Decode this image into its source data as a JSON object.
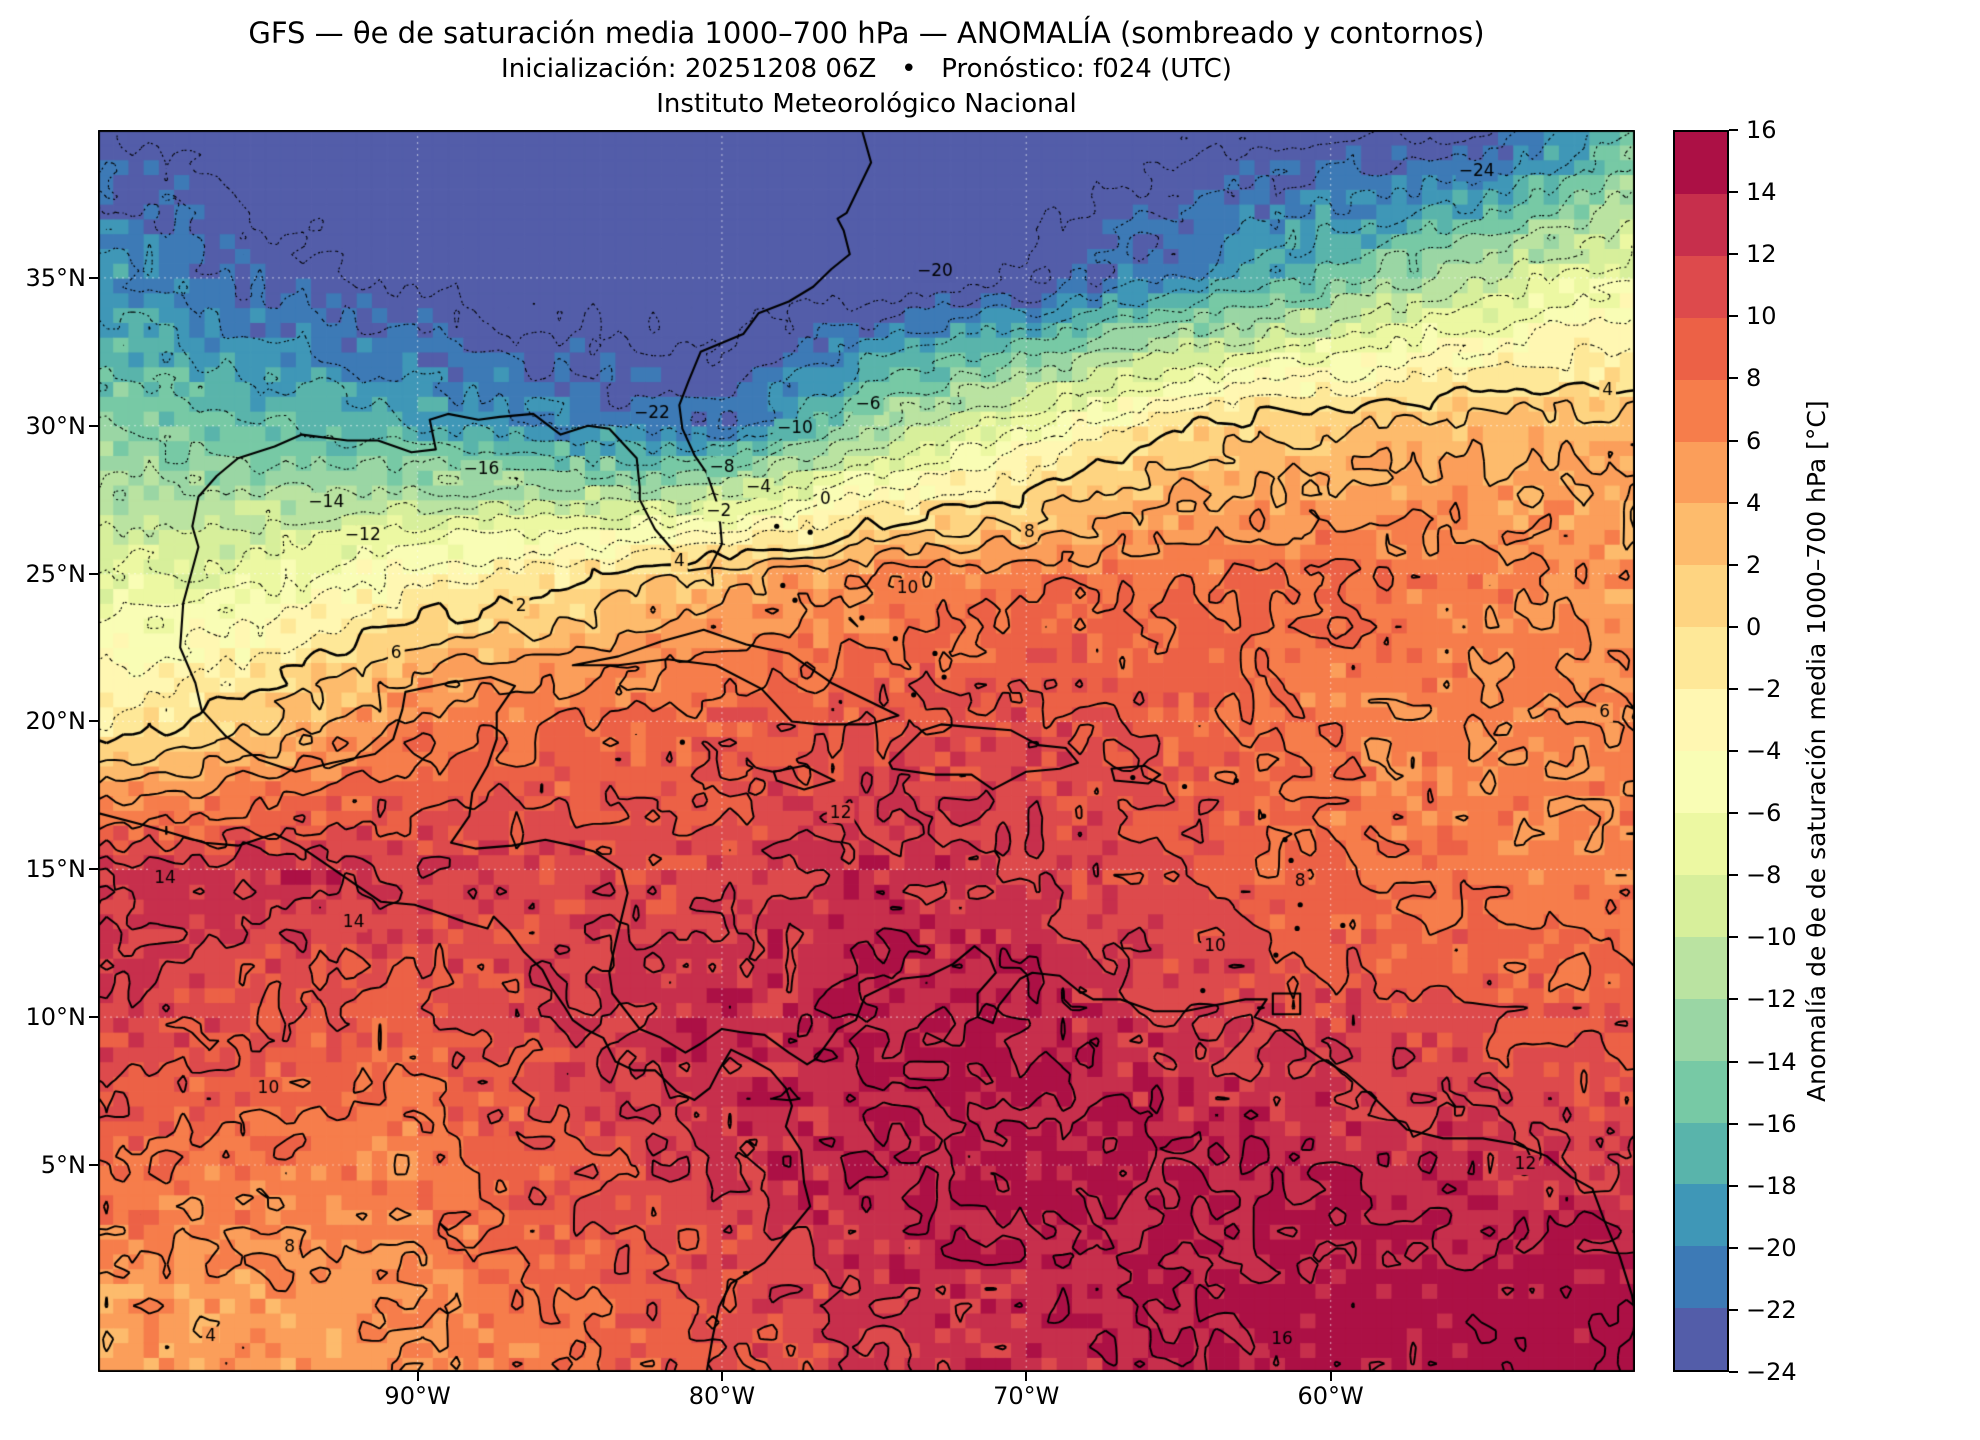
{
  "title": {
    "line1": "GFS — θe de saturación media 1000–700 hPa — ANOMALÍA (sombreado y contornos)",
    "line2": "Inicialización: 20251208 06Z   •   Pronóstico: f024 (UTC)",
    "line3": "Instituto Meteorológico Nacional"
  },
  "axes": {
    "lon_range": [
      -100.5,
      -50.0
    ],
    "lat_range": [
      -2.0,
      40.0
    ],
    "x_ticks": [
      {
        "label": "90°W",
        "lon": -90
      },
      {
        "label": "80°W",
        "lon": -80
      },
      {
        "label": "70°W",
        "lon": -70
      },
      {
        "label": "60°W",
        "lon": -60
      }
    ],
    "y_ticks": [
      {
        "label": "35°N",
        "lat": 35
      },
      {
        "label": "30°N",
        "lat": 30
      },
      {
        "label": "25°N",
        "lat": 25
      },
      {
        "label": "20°N",
        "lat": 20
      },
      {
        "label": "15°N",
        "lat": 15
      },
      {
        "label": "10°N",
        "lat": 10
      },
      {
        "label": "5°N",
        "lat": 5
      }
    ]
  },
  "colorbar": {
    "label": "Anomalía de θe de saturación media 1000–700 hPa [°C]",
    "min": -24,
    "max": 16,
    "step": 2,
    "tick_labels": [
      "16",
      "14",
      "12",
      "10",
      "8",
      "6",
      "4",
      "2",
      "0",
      "−2",
      "−4",
      "−6",
      "−8",
      "−10",
      "−12",
      "−14",
      "−16",
      "−18",
      "−20",
      "−22",
      "−24"
    ]
  },
  "chart_data": {
    "type": "heatmap",
    "field": "Anomalía de θe de saturación media 1000–700 hPa",
    "units": "°C",
    "model": "GFS",
    "init": "20251208 06Z",
    "forecast": "f024 (UTC)",
    "levels": {
      "min": -24,
      "max": 16,
      "step": 2
    },
    "colormap": {
      "name": "Spectral_r",
      "anchors": [
        "#9e0142",
        "#d53e4f",
        "#f46d43",
        "#fdae61",
        "#fee08b",
        "#ffffbf",
        "#e6f598",
        "#abdda4",
        "#66c2a5",
        "#3288bd",
        "#5e4fa2"
      ]
    },
    "grid": {
      "lons": [
        -100,
        -95,
        -90,
        -85,
        -80,
        -75,
        -70,
        -65,
        -60,
        -55,
        -50
      ],
      "lats": [
        40,
        35,
        30,
        25,
        20,
        15,
        10,
        5,
        0
      ],
      "values": [
        [
          -24,
          -26,
          -27,
          -27,
          -27,
          -27,
          -26,
          -25,
          -25,
          -25,
          -16
        ],
        [
          -19,
          -23,
          -25,
          -26,
          -26,
          -26,
          -24,
          -20,
          -15,
          -10,
          -6
        ],
        [
          -14,
          -16,
          -18,
          -20,
          -22,
          -12,
          -6,
          0,
          2,
          3,
          3
        ],
        [
          -8,
          -7,
          -3,
          -1,
          3,
          6,
          7,
          8,
          8,
          7,
          5
        ],
        [
          -2,
          2,
          7,
          8,
          9,
          10,
          11,
          9,
          7,
          6,
          6
        ],
        [
          12,
          13,
          12,
          11,
          11,
          13,
          12,
          10,
          8,
          7,
          7
        ],
        [
          12,
          10,
          9,
          12,
          13,
          14,
          14,
          12,
          11,
          10,
          9
        ],
        [
          8,
          7,
          7,
          10,
          12,
          14,
          15,
          14,
          14,
          13,
          12
        ],
        [
          5,
          5,
          6,
          8,
          10,
          12,
          13,
          14,
          15,
          15,
          16
        ]
      ]
    },
    "contour_labels": [
      {
        "text": "−24",
        "lon": -55.2,
        "lat": 38.6
      },
      {
        "text": "−20",
        "lon": -73.0,
        "lat": 35.2
      },
      {
        "text": "−22",
        "lon": -82.3,
        "lat": 30.4
      },
      {
        "text": "−16",
        "lon": -87.9,
        "lat": 28.5
      },
      {
        "text": "−14",
        "lon": -93.0,
        "lat": 27.4
      },
      {
        "text": "−12",
        "lon": -91.8,
        "lat": 26.3
      },
      {
        "text": "−10",
        "lon": -77.6,
        "lat": 29.9
      },
      {
        "text": "−8",
        "lon": -80.0,
        "lat": 28.6
      },
      {
        "text": "−6",
        "lon": -75.2,
        "lat": 30.7
      },
      {
        "text": "−4",
        "lon": -78.8,
        "lat": 27.9
      },
      {
        "text": "−2",
        "lon": -80.1,
        "lat": 27.1
      },
      {
        "text": "0",
        "lon": -76.6,
        "lat": 27.5
      },
      {
        "text": "2",
        "lon": -86.6,
        "lat": 23.9
      },
      {
        "text": "4",
        "lon": -81.4,
        "lat": 25.4
      },
      {
        "text": "4",
        "lon": -50.9,
        "lat": 31.2
      },
      {
        "text": "4",
        "lon": -96.8,
        "lat": -0.8
      },
      {
        "text": "6",
        "lon": -90.7,
        "lat": 22.3
      },
      {
        "text": "6",
        "lon": -51.0,
        "lat": 20.3
      },
      {
        "text": "8",
        "lon": -69.9,
        "lat": 26.4
      },
      {
        "text": "8",
        "lon": -61.0,
        "lat": 14.6
      },
      {
        "text": "8",
        "lon": -94.2,
        "lat": 2.2
      },
      {
        "text": "10",
        "lon": -73.9,
        "lat": 24.5
      },
      {
        "text": "10",
        "lon": -94.9,
        "lat": 7.6
      },
      {
        "text": "10",
        "lon": -63.8,
        "lat": 12.4
      },
      {
        "text": "12",
        "lon": -76.1,
        "lat": 16.9
      },
      {
        "text": "12",
        "lon": -53.6,
        "lat": 5.0
      },
      {
        "text": "14",
        "lon": -92.1,
        "lat": 13.2
      },
      {
        "text": "14",
        "lon": -98.3,
        "lat": 14.7
      },
      {
        "text": "16",
        "lon": -61.6,
        "lat": -0.9
      }
    ],
    "coastlines": [
      [
        [
          -75.4,
          40.0
        ],
        [
          -75.1,
          38.9
        ],
        [
          -75.9,
          37.2
        ],
        [
          -76.2,
          37.0
        ],
        [
          -76.0,
          36.6
        ],
        [
          -75.8,
          35.8
        ],
        [
          -76.4,
          35.3
        ],
        [
          -77.0,
          34.7
        ],
        [
          -77.8,
          34.2
        ],
        [
          -78.8,
          33.8
        ],
        [
          -79.3,
          33.1
        ],
        [
          -80.7,
          32.5
        ],
        [
          -81.1,
          31.5
        ],
        [
          -81.4,
          30.7
        ],
        [
          -81.3,
          29.9
        ],
        [
          -80.9,
          29.0
        ],
        [
          -80.5,
          28.4
        ],
        [
          -80.1,
          27.2
        ],
        [
          -80.0,
          26.0
        ],
        [
          -80.4,
          25.2
        ],
        [
          -81.1,
          25.1
        ],
        [
          -81.7,
          25.9
        ],
        [
          -82.2,
          26.5
        ],
        [
          -82.7,
          27.5
        ],
        [
          -82.7,
          27.9
        ],
        [
          -82.8,
          28.9
        ],
        [
          -83.7,
          29.9
        ],
        [
          -84.4,
          30.0
        ],
        [
          -85.3,
          29.7
        ],
        [
          -86.2,
          30.4
        ],
        [
          -87.3,
          30.3
        ],
        [
          -88.0,
          30.2
        ],
        [
          -89.0,
          30.4
        ],
        [
          -89.6,
          30.2
        ],
        [
          -89.4,
          29.2
        ],
        [
          -90.2,
          29.1
        ],
        [
          -91.3,
          29.5
        ],
        [
          -92.3,
          29.5
        ],
        [
          -93.8,
          29.7
        ],
        [
          -94.7,
          29.3
        ],
        [
          -95.9,
          28.9
        ],
        [
          -96.6,
          28.3
        ],
        [
          -97.2,
          27.6
        ],
        [
          -97.4,
          26.6
        ],
        [
          -97.2,
          25.9
        ],
        [
          -97.7,
          24.0
        ],
        [
          -97.8,
          22.5
        ],
        [
          -97.3,
          21.3
        ],
        [
          -97.1,
          20.4
        ],
        [
          -96.3,
          19.5
        ],
        [
          -95.2,
          18.7
        ],
        [
          -94.0,
          18.3
        ],
        [
          -92.8,
          18.6
        ],
        [
          -91.4,
          18.9
        ],
        [
          -90.8,
          19.4
        ],
        [
          -90.5,
          20.4
        ],
        [
          -90.4,
          21.0
        ],
        [
          -89.0,
          21.3
        ],
        [
          -87.6,
          21.5
        ],
        [
          -86.8,
          21.2
        ],
        [
          -87.4,
          20.3
        ],
        [
          -87.4,
          19.4
        ],
        [
          -87.7,
          18.5
        ],
        [
          -88.2,
          17.6
        ],
        [
          -88.3,
          16.8
        ],
        [
          -88.9,
          15.9
        ],
        [
          -88.1,
          15.7
        ],
        [
          -86.9,
          15.8
        ],
        [
          -85.8,
          16.0
        ],
        [
          -84.9,
          15.8
        ],
        [
          -84.2,
          15.6
        ],
        [
          -83.3,
          15.0
        ],
        [
          -83.1,
          14.2
        ],
        [
          -83.5,
          12.5
        ],
        [
          -83.7,
          11.5
        ],
        [
          -83.6,
          10.8
        ],
        [
          -82.7,
          9.6
        ],
        [
          -82.0,
          9.3
        ],
        [
          -81.2,
          8.8
        ],
        [
          -80.7,
          9.1
        ],
        [
          -80.0,
          9.6
        ],
        [
          -79.4,
          9.5
        ],
        [
          -78.6,
          9.4
        ],
        [
          -77.8,
          8.8
        ],
        [
          -77.2,
          8.4
        ],
        [
          -76.9,
          8.6
        ],
        [
          -76.2,
          9.6
        ],
        [
          -75.6,
          9.9
        ],
        [
          -75.3,
          10.7
        ],
        [
          -74.7,
          11.0
        ],
        [
          -74.1,
          11.3
        ],
        [
          -73.2,
          11.4
        ],
        [
          -72.4,
          11.8
        ],
        [
          -71.7,
          12.4
        ],
        [
          -71.2,
          12.0
        ],
        [
          -71.0,
          11.5
        ],
        [
          -71.6,
          10.8
        ],
        [
          -71.6,
          10.0
        ],
        [
          -71.1,
          9.8
        ],
        [
          -70.9,
          10.4
        ],
        [
          -70.2,
          11.3
        ],
        [
          -69.8,
          11.5
        ],
        [
          -68.9,
          11.4
        ],
        [
          -68.3,
          10.9
        ],
        [
          -67.8,
          10.6
        ],
        [
          -66.9,
          10.6
        ],
        [
          -65.8,
          10.2
        ],
        [
          -64.8,
          10.2
        ],
        [
          -63.8,
          10.4
        ],
        [
          -62.8,
          10.6
        ],
        [
          -62.1,
          10.6
        ],
        [
          -62.5,
          10.0
        ],
        [
          -61.8,
          9.7
        ],
        [
          -61.0,
          9.1
        ],
        [
          -60.3,
          8.6
        ],
        [
          -59.5,
          8.1
        ],
        [
          -58.6,
          7.3
        ],
        [
          -57.5,
          6.2
        ],
        [
          -56.3,
          5.9
        ],
        [
          -55.0,
          5.9
        ],
        [
          -53.9,
          5.7
        ],
        [
          -52.9,
          5.3
        ],
        [
          -52.1,
          4.6
        ],
        [
          -51.4,
          4.2
        ],
        [
          -51.0,
          3.1
        ],
        [
          -50.5,
          1.9
        ],
        [
          -50.1,
          0.6
        ],
        [
          -50.0,
          0.0
        ]
      ],
      [
        [
          -100.5,
          16.9
        ],
        [
          -99.0,
          16.5
        ],
        [
          -98.0,
          16.2
        ],
        [
          -97.0,
          15.9
        ],
        [
          -95.9,
          15.8
        ],
        [
          -94.7,
          16.2
        ],
        [
          -93.9,
          15.8
        ],
        [
          -92.9,
          15.1
        ],
        [
          -92.2,
          14.6
        ],
        [
          -91.2,
          13.9
        ],
        [
          -90.1,
          13.8
        ],
        [
          -89.2,
          13.5
        ],
        [
          -88.4,
          13.2
        ],
        [
          -87.7,
          13.0
        ],
        [
          -87.5,
          13.4
        ],
        [
          -87.0,
          12.9
        ],
        [
          -86.5,
          12.2
        ],
        [
          -85.9,
          11.6
        ],
        [
          -85.6,
          11.0
        ],
        [
          -85.2,
          10.4
        ],
        [
          -84.9,
          9.9
        ],
        [
          -84.5,
          9.6
        ],
        [
          -83.9,
          9.3
        ],
        [
          -83.5,
          8.5
        ],
        [
          -82.9,
          8.2
        ],
        [
          -82.2,
          8.2
        ],
        [
          -81.5,
          7.5
        ],
        [
          -80.9,
          7.2
        ],
        [
          -80.4,
          7.6
        ],
        [
          -80.1,
          8.2
        ],
        [
          -79.7,
          8.9
        ],
        [
          -79.1,
          8.6
        ],
        [
          -78.4,
          8.2
        ],
        [
          -77.9,
          7.6
        ],
        [
          -77.7,
          7.0
        ],
        [
          -77.9,
          6.3
        ],
        [
          -77.4,
          5.5
        ],
        [
          -77.3,
          4.4
        ],
        [
          -77.1,
          3.6
        ],
        [
          -77.9,
          2.6
        ],
        [
          -78.6,
          1.7
        ],
        [
          -79.7,
          1.0
        ],
        [
          -80.1,
          0.2
        ],
        [
          -80.3,
          -0.8
        ],
        [
          -80.5,
          -2.0
        ]
      ],
      [
        [
          -84.9,
          21.9
        ],
        [
          -83.4,
          22.2
        ],
        [
          -82.0,
          22.7
        ],
        [
          -80.6,
          23.1
        ],
        [
          -79.2,
          22.6
        ],
        [
          -77.8,
          22.3
        ],
        [
          -76.4,
          21.3
        ],
        [
          -75.2,
          20.7
        ],
        [
          -74.2,
          20.2
        ],
        [
          -75.2,
          19.9
        ],
        [
          -76.8,
          19.9
        ],
        [
          -77.7,
          20.0
        ],
        [
          -78.7,
          21.1
        ],
        [
          -80.2,
          21.9
        ],
        [
          -81.8,
          22.1
        ],
        [
          -83.4,
          21.9
        ],
        [
          -84.9,
          21.9
        ]
      ],
      [
        [
          -74.4,
          18.4
        ],
        [
          -73.0,
          18.2
        ],
        [
          -71.8,
          18.2
        ],
        [
          -71.1,
          17.7
        ],
        [
          -70.0,
          18.3
        ],
        [
          -68.9,
          18.4
        ],
        [
          -68.3,
          18.6
        ],
        [
          -68.7,
          19.1
        ],
        [
          -69.6,
          19.2
        ],
        [
          -70.5,
          19.7
        ],
        [
          -71.7,
          19.8
        ],
        [
          -72.8,
          19.9
        ],
        [
          -73.4,
          19.7
        ],
        [
          -74.5,
          18.6
        ],
        [
          -74.4,
          18.4
        ]
      ],
      [
        [
          -78.3,
          18.3
        ],
        [
          -77.3,
          18.5
        ],
        [
          -76.3,
          18.0
        ],
        [
          -77.3,
          17.7
        ],
        [
          -78.2,
          18.0
        ],
        [
          -78.3,
          18.3
        ]
      ],
      [
        [
          -67.2,
          18.4
        ],
        [
          -66.1,
          18.5
        ],
        [
          -65.6,
          18.2
        ],
        [
          -66.0,
          17.9
        ],
        [
          -67.1,
          18.0
        ],
        [
          -67.2,
          18.4
        ]
      ],
      [
        [
          -61.9,
          10.8
        ],
        [
          -61.0,
          10.8
        ],
        [
          -61.0,
          10.1
        ],
        [
          -61.9,
          10.1
        ],
        [
          -61.9,
          10.8
        ]
      ]
    ],
    "island_dots": [
      [
        -78.2,
        26.6
      ],
      [
        -77.1,
        26.4
      ],
      [
        -78.0,
        24.6
      ],
      [
        -77.6,
        24.1
      ],
      [
        -75.4,
        23.5
      ],
      [
        -74.3,
        22.8
      ],
      [
        -73.0,
        22.3
      ],
      [
        -72.7,
        21.5
      ],
      [
        -73.7,
        20.9
      ],
      [
        -81.3,
        19.3
      ],
      [
        -66.5,
        18.1
      ],
      [
        -64.8,
        17.8
      ],
      [
        -63.1,
        18.0
      ],
      [
        -62.2,
        16.8
      ],
      [
        -61.5,
        16.0
      ],
      [
        -61.3,
        15.3
      ],
      [
        -61.0,
        14.5
      ],
      [
        -61.0,
        13.8
      ],
      [
        -61.1,
        13.0
      ],
      [
        -59.6,
        13.1
      ],
      [
        -61.8,
        12.1
      ],
      [
        -64.2,
        10.9
      ]
    ]
  }
}
